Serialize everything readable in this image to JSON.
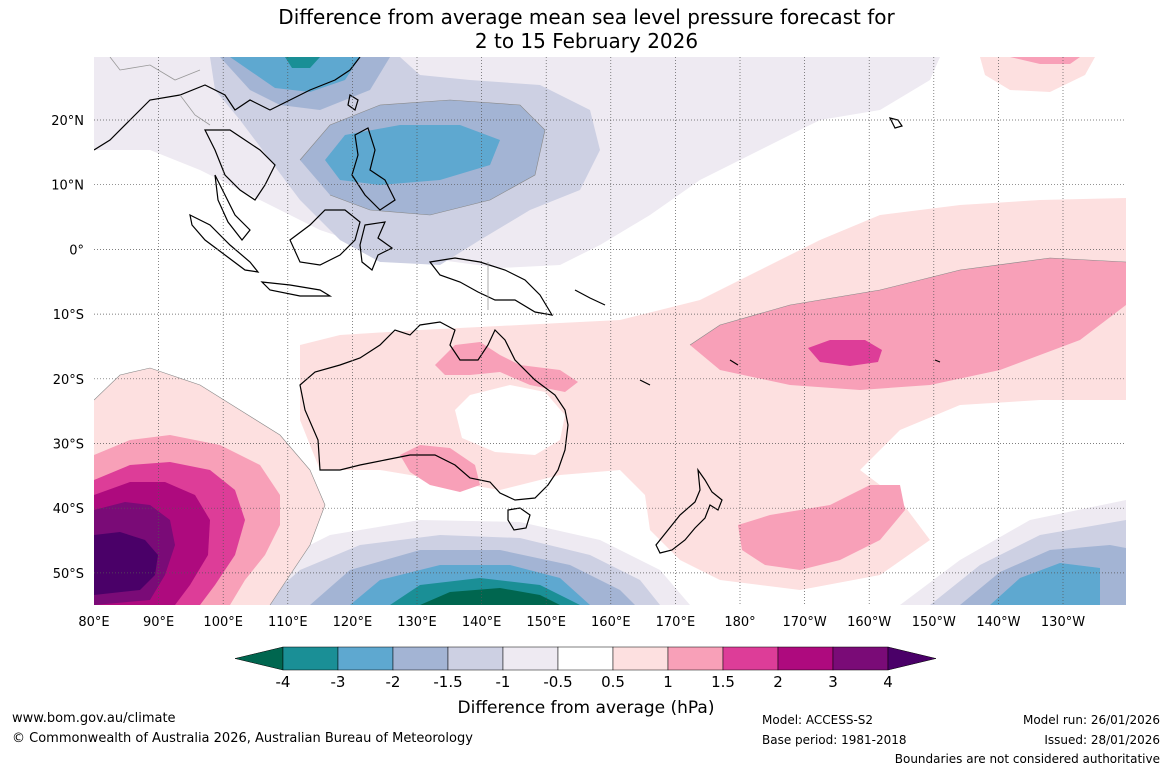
{
  "title": {
    "line1": "Difference from average mean sea level pressure forecast for",
    "line2": "2 to 15 February 2026"
  },
  "axes": {
    "lon_labels": [
      "80°E",
      "90°E",
      "100°E",
      "110°E",
      "120°E",
      "130°E",
      "140°E",
      "150°E",
      "160°E",
      "170°E",
      "180°",
      "170°W",
      "160°W",
      "150°W",
      "140°W",
      "130°W"
    ],
    "lat_labels": [
      "20°N",
      "10°N",
      "0°",
      "10°S",
      "20°S",
      "30°S",
      "40°S",
      "50°S"
    ]
  },
  "colorbar": {
    "title": "Difference from average (hPa)",
    "tick_labels": [
      "-4",
      "-3",
      "-2",
      "-1.5",
      "-1",
      "-0.5",
      "0.5",
      "1",
      "1.5",
      "2",
      "3",
      "4"
    ],
    "colors": [
      "#00664f",
      "#1a8f96",
      "#5ea8d0",
      "#a3b4d4",
      "#cdd0e3",
      "#eeeaf2",
      "#ffffff",
      "#fde0e0",
      "#f8a0b8",
      "#dd3d98",
      "#ae0a7e",
      "#7a0b77",
      "#4a0068"
    ]
  },
  "footer": {
    "website": "www.bom.gov.au/climate",
    "copyright": "© Commonwealth of Australia 2026, Australian Bureau of Meteorology",
    "model": "Model: ACCESS-S2",
    "base_period": "Base period: 1981-2018",
    "model_run": "Model run: 26/01/2026",
    "issued": "Issued: 28/01/2026",
    "boundaries": "Boundaries are not considered authoritative"
  }
}
